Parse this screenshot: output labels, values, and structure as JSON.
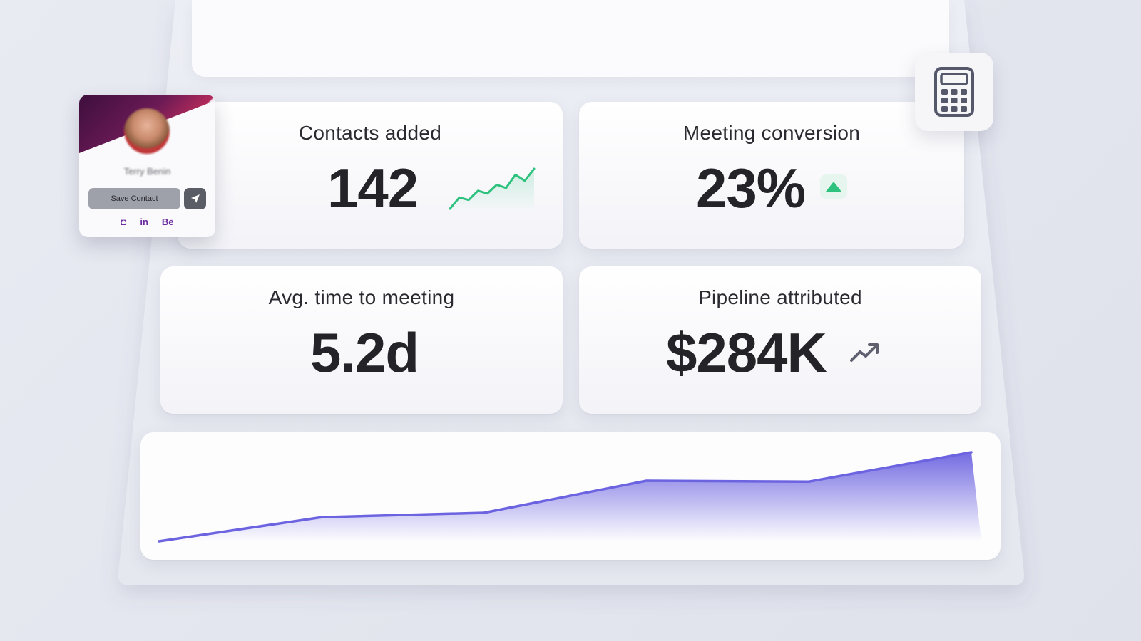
{
  "profile_card": {
    "name": "Terry Benin",
    "save_label": "Save Contact",
    "socials": [
      "◘",
      "in",
      "Bē"
    ]
  },
  "metrics": [
    {
      "title": "Contacts added",
      "value": "142",
      "indicator": "sparkline-icon"
    },
    {
      "title": "Meeting conversion",
      "value": "23%",
      "indicator": "triangle-up-icon"
    },
    {
      "title": "Avg. time to meeting",
      "value": "5.2d",
      "indicator": ""
    },
    {
      "title": "Pipeline attributed",
      "value": "$284K",
      "indicator": "trending-up-icon"
    }
  ],
  "colors": {
    "accent_purple": "#6c63e0",
    "positive_green": "#2ec27e",
    "profile_cover": "#4a1243"
  },
  "chart_data": {
    "type": "area",
    "x": [
      0,
      1,
      2,
      3,
      4,
      5
    ],
    "values": [
      0,
      27,
      32,
      68,
      67,
      100
    ],
    "title": "",
    "xlabel": "",
    "ylabel": "",
    "grid": false
  },
  "sparkline_data": {
    "type": "line",
    "values": [
      0,
      28,
      22,
      45,
      38,
      60,
      52,
      85,
      70,
      100
    ]
  }
}
